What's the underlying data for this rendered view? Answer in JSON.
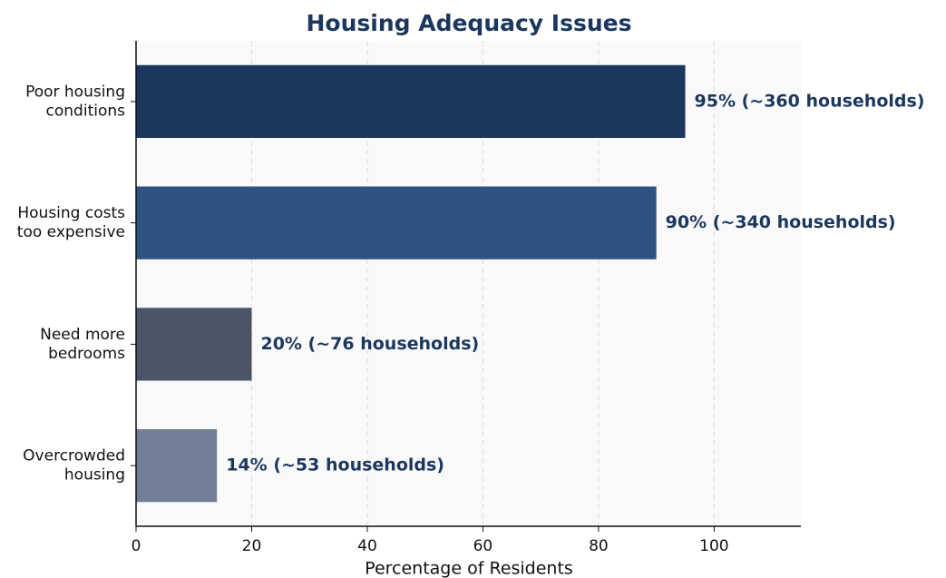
{
  "chart_data": {
    "type": "barh",
    "title": "Housing Adequacy Issues",
    "xlabel": "Percentage of Residents",
    "categories": [
      [
        "Poor housing",
        "conditions"
      ],
      [
        "Housing costs",
        "too expensive"
      ],
      [
        "Need more",
        "bedrooms"
      ],
      [
        "Overcrowded",
        "housing"
      ]
    ],
    "values": [
      95,
      90,
      20,
      14
    ],
    "value_labels": [
      "95%  (~360 households)",
      "90%  (~340 households)",
      "20%  (~76 households)",
      "14%  (~53 households)"
    ],
    "colors": [
      "#1c375e",
      "#2e5281",
      "#4a5568",
      "#718096"
    ],
    "xlim": [
      0,
      115
    ],
    "xticks": [
      0,
      20,
      40,
      60,
      80,
      100
    ],
    "grid": true
  }
}
